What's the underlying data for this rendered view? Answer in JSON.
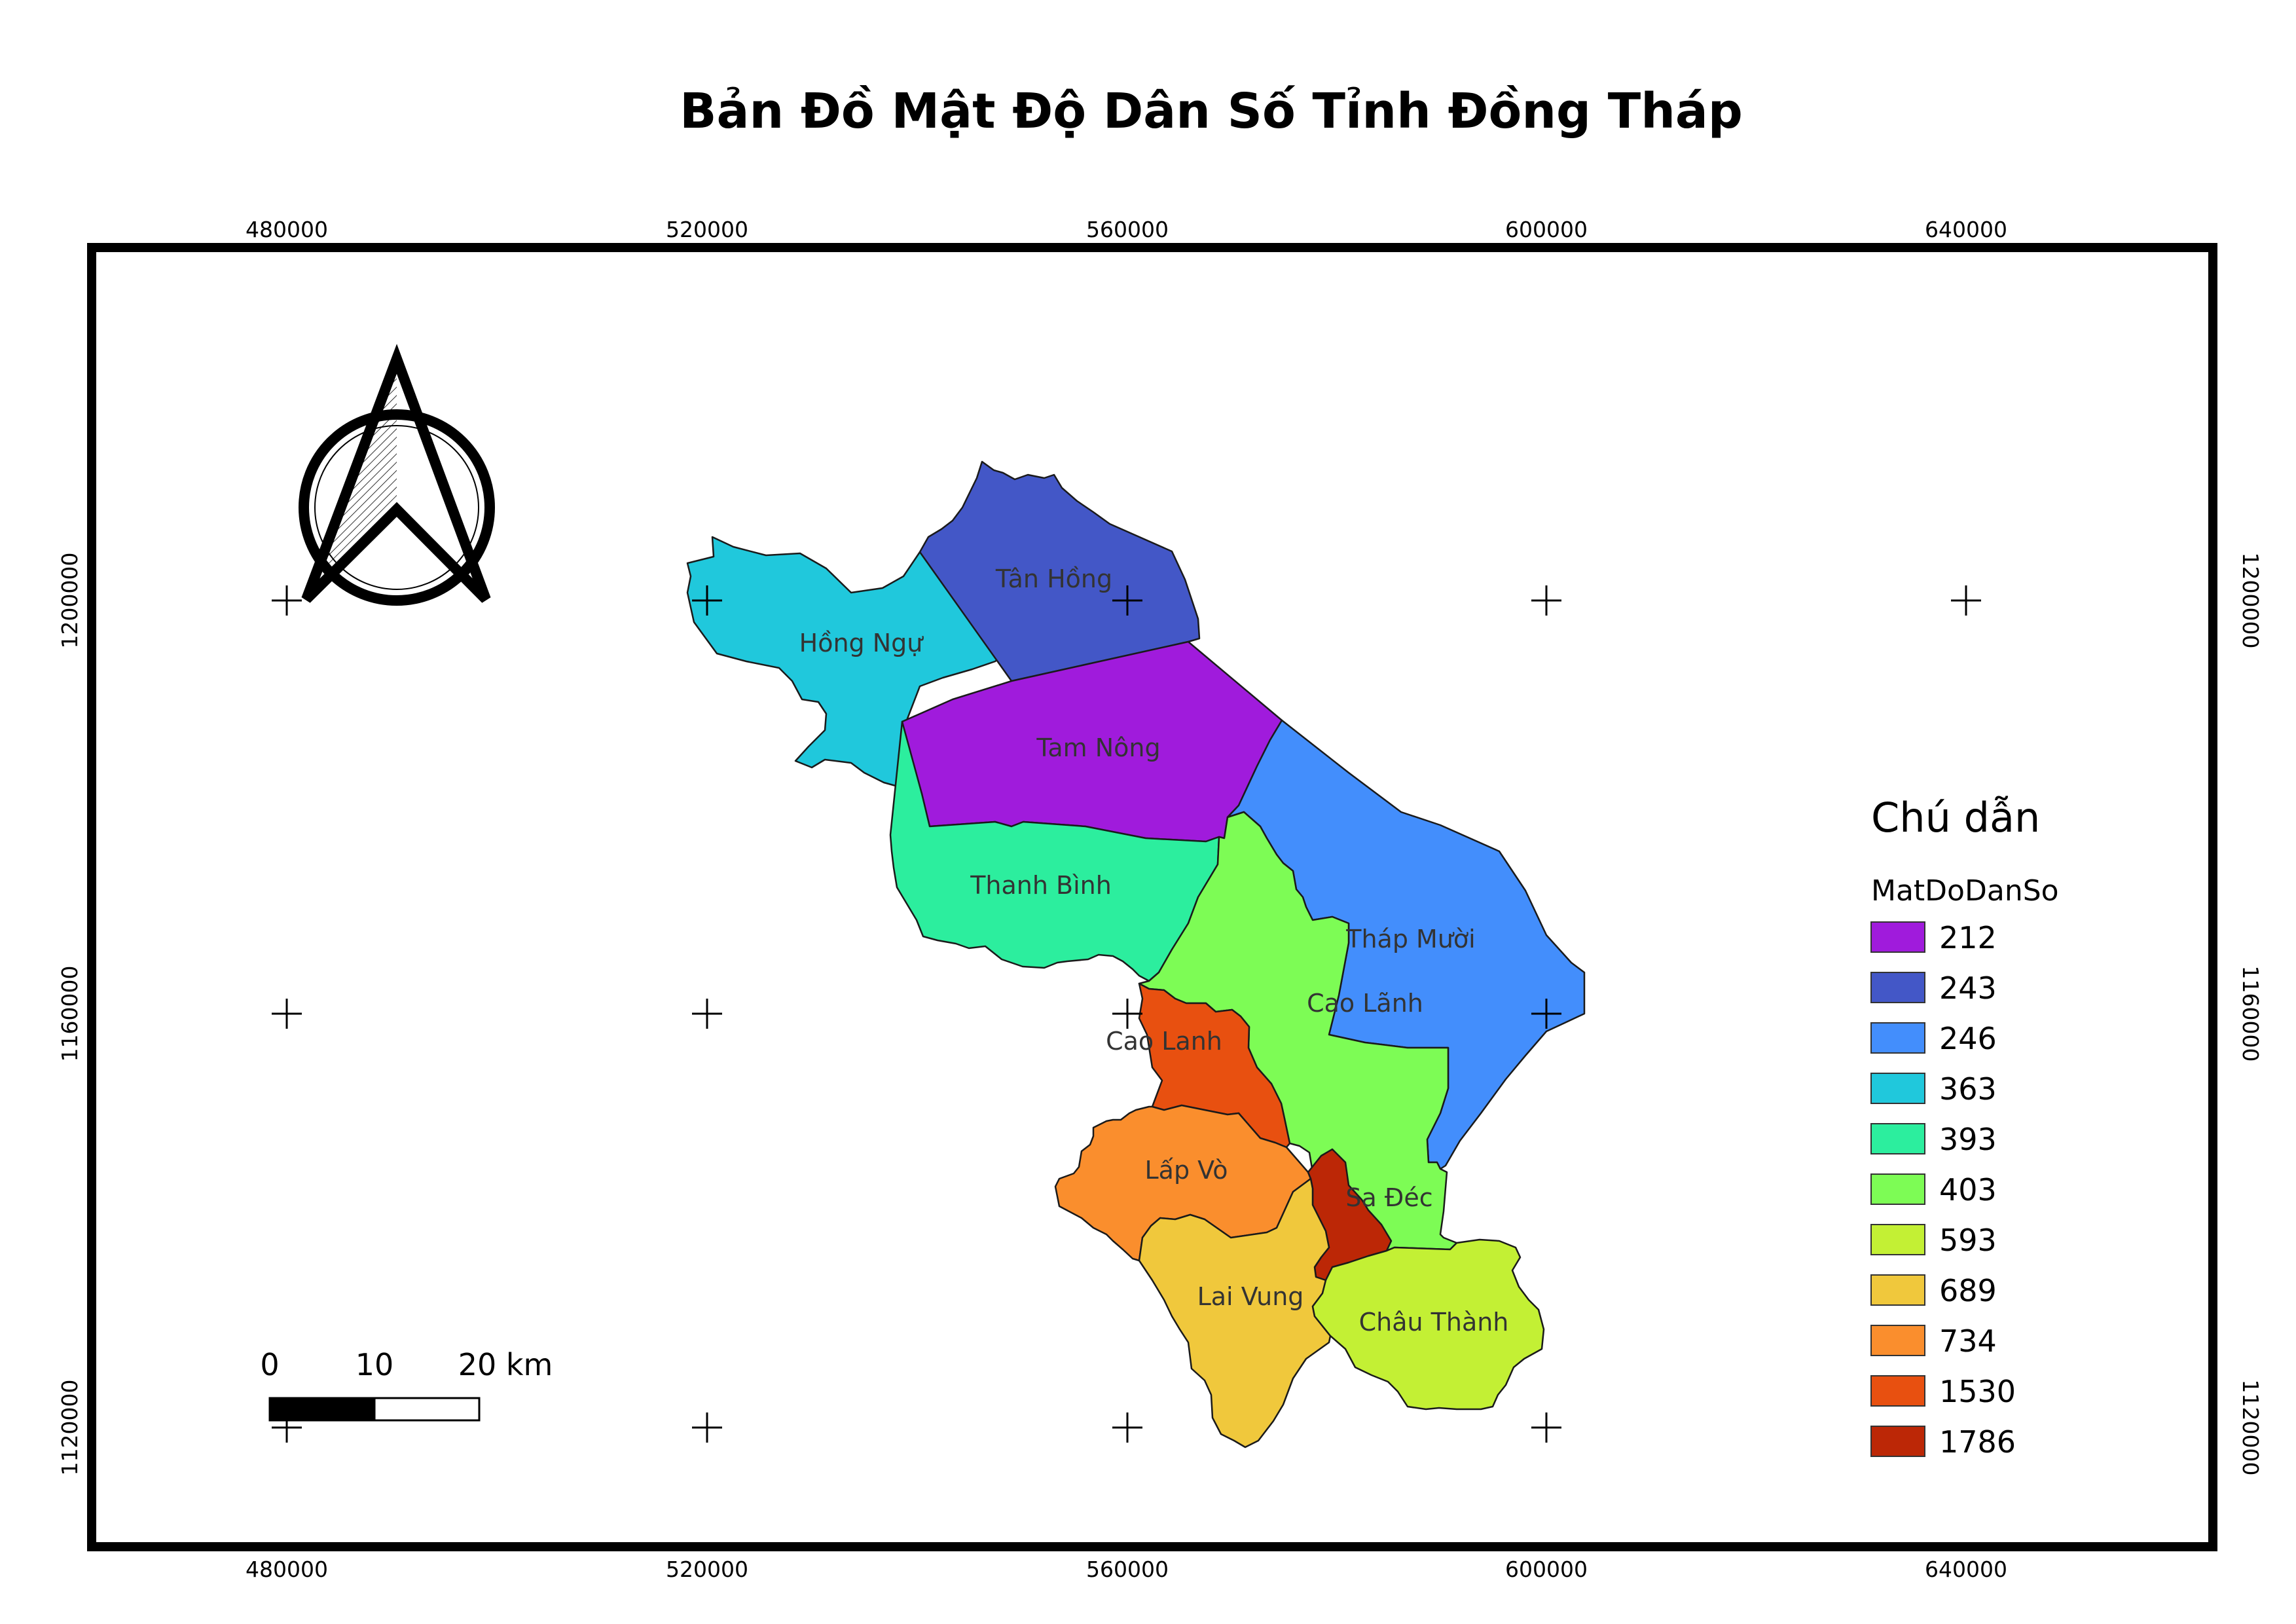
{
  "title": "Bản Đồ Mật Độ Dân Số Tỉnh Đồng Tháp",
  "x_ticks": [
    "480000",
    "520000",
    "560000",
    "600000",
    "640000"
  ],
  "y_ticks": [
    "1200000",
    "1160000",
    "1120000"
  ],
  "districts": [
    {
      "name": "Hồng Ngự",
      "density": 363,
      "color": "#20C8DC"
    },
    {
      "name": "Tân Hồng",
      "density": 243,
      "color": "#4357C7"
    },
    {
      "name": "Tam Nông",
      "density": 212,
      "color": "#A01BDC"
    },
    {
      "name": "Thanh Bình",
      "density": 393,
      "color": "#2CEE9E"
    },
    {
      "name": "Tháp Mười",
      "density": 246,
      "color": "#438EFC"
    },
    {
      "name": "Cao Lãnh",
      "density": 403,
      "color": "#7DFC55"
    },
    {
      "name": "Cao Lanh",
      "density": 1530,
      "color": "#E85010"
    },
    {
      "name": "Lấp Vò",
      "density": 734,
      "color": "#FA8E2D"
    },
    {
      "name": "Sa Đéc",
      "density": 1786,
      "color": "#BC2706"
    },
    {
      "name": "Lai Vung",
      "density": 689,
      "color": "#F0C83C"
    },
    {
      "name": "Châu Thành",
      "density": 593,
      "color": "#C3F034"
    }
  ],
  "legend": {
    "title": "Chú dẫn",
    "field": "MatDoDanSo",
    "items": [
      {
        "label": "212",
        "color": "#A01BDC"
      },
      {
        "label": "243",
        "color": "#4357C7"
      },
      {
        "label": "246",
        "color": "#438EFC"
      },
      {
        "label": "363",
        "color": "#20C8DC"
      },
      {
        "label": "393",
        "color": "#2CEE9E"
      },
      {
        "label": "403",
        "color": "#7DFC55"
      },
      {
        "label": "593",
        "color": "#C3F034"
      },
      {
        "label": "689",
        "color": "#F0C83C"
      },
      {
        "label": "734",
        "color": "#FA8E2D"
      },
      {
        "label": "1530",
        "color": "#E85010"
      },
      {
        "label": "1786",
        "color": "#BC2706"
      }
    ]
  },
  "scale_bar": {
    "labels": [
      "0",
      "10",
      "20 km"
    ]
  },
  "north_arrow": {
    "icon": "north-arrow-icon"
  }
}
